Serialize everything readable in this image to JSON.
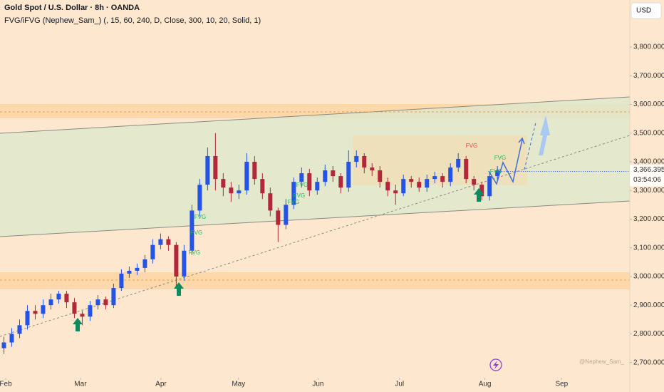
{
  "chart_data": {
    "type": "candlestick",
    "title": "Gold Spot / U.S. Dollar · 8h · OANDA",
    "subtitle": "FVG/iFVG (Nephew_Sam_) (, 15, 60, 240, D, Close, 300, 10, 20, Solid, 1)",
    "currency": "USD",
    "last_price": {
      "value": 3366.395,
      "label": "3,366.395"
    },
    "countdown": "03:54:06",
    "watermark": "@Nephew_Sam_",
    "up_color": "#2453e6",
    "down_color": "#b0283a",
    "open": [
      2750,
      2770,
      2800,
      2830,
      2880,
      2870,
      2900,
      2920,
      2940,
      2910,
      2870,
      2860,
      2900,
      2920,
      2900,
      2960,
      3010,
      3020,
      3030,
      3060,
      3110,
      3130,
      3110,
      3000,
      3090,
      3230,
      3320,
      3420,
      3340,
      3310,
      3290,
      3300,
      3400,
      3340,
      3290,
      3230,
      3180,
      3250,
      3330,
      3360,
      3300,
      3330,
      3370,
      3350,
      3310,
      3400,
      3420,
      3380,
      3370,
      3330,
      3300,
      3290,
      3340,
      3330,
      3310,
      3340,
      3350,
      3330,
      3380,
      3410,
      3340,
      3320,
      3280,
      3350
    ],
    "high": [
      2790,
      2820,
      2850,
      2900,
      2900,
      2920,
      2940,
      2950,
      2950,
      2925,
      2880,
      2915,
      2935,
      2930,
      2975,
      3025,
      3035,
      3045,
      3075,
      3130,
      3150,
      3140,
      3120,
      3110,
      3250,
      3340,
      3450,
      3500,
      3360,
      3330,
      3320,
      3430,
      3420,
      3360,
      3310,
      3240,
      3270,
      3345,
      3380,
      3375,
      3345,
      3390,
      3385,
      3360,
      3440,
      3440,
      3430,
      3395,
      3385,
      3345,
      3320,
      3355,
      3350,
      3345,
      3355,
      3365,
      3360,
      3395,
      3430,
      3420,
      3350,
      3330,
      3365,
      3385
    ],
    "low": [
      2730,
      2755,
      2785,
      2815,
      2850,
      2855,
      2885,
      2905,
      2890,
      2855,
      2830,
      2845,
      2885,
      2885,
      2890,
      2950,
      2995,
      3005,
      3015,
      3045,
      3095,
      3090,
      2960,
      2985,
      3075,
      3210,
      3300,
      3300,
      3280,
      3260,
      3270,
      3285,
      3320,
      3270,
      3210,
      3120,
      3165,
      3235,
      3310,
      3280,
      3285,
      3315,
      3330,
      3290,
      3295,
      3380,
      3360,
      3350,
      3310,
      3280,
      3250,
      3280,
      3310,
      3295,
      3295,
      3325,
      3310,
      3315,
      3365,
      3325,
      3300,
      3265,
      3265,
      3335
    ],
    "close": [
      2770,
      2800,
      2830,
      2880,
      2870,
      2900,
      2920,
      2940,
      2910,
      2870,
      2860,
      2900,
      2920,
      2900,
      2960,
      3010,
      3020,
      3030,
      3060,
      3110,
      3130,
      3110,
      3000,
      3090,
      3230,
      3320,
      3420,
      3340,
      3310,
      3290,
      3300,
      3400,
      3340,
      3290,
      3230,
      3180,
      3250,
      3330,
      3360,
      3300,
      3330,
      3370,
      3350,
      3310,
      3400,
      3420,
      3380,
      3370,
      3330,
      3300,
      3290,
      3340,
      3330,
      3310,
      3340,
      3350,
      3330,
      3380,
      3410,
      3340,
      3320,
      3280,
      3350,
      3370
    ],
    "xlim": [
      -0.5,
      79.9
    ],
    "xticks": [
      {
        "value": 0.23,
        "label": "Feb"
      },
      {
        "value": 9.77,
        "label": "Mar"
      },
      {
        "value": 20.05,
        "label": "Apr"
      },
      {
        "value": 29.95,
        "label": "May"
      },
      {
        "value": 40.1,
        "label": "Jun"
      },
      {
        "value": 50.5,
        "label": "Jul"
      },
      {
        "value": 61.4,
        "label": "Aug"
      },
      {
        "value": 71.2,
        "label": "Sep"
      }
    ],
    "ylim": [
      2647,
      3964
    ],
    "yticks": [
      {
        "value": 2700,
        "label": "2,700.000"
      },
      {
        "value": 2800,
        "label": "2,800.000"
      },
      {
        "value": 2900,
        "label": "2,900.000"
      },
      {
        "value": 3000,
        "label": "3,000.000"
      },
      {
        "value": 3100,
        "label": "3,100.000"
      },
      {
        "value": 3200,
        "label": "3,200.000"
      },
      {
        "value": 3300,
        "label": "3,300.000"
      },
      {
        "value": 3400,
        "label": "3,400.000"
      },
      {
        "value": 3500,
        "label": "3,500.000"
      },
      {
        "value": 3600,
        "label": "3,600.000"
      },
      {
        "value": 3700,
        "label": "3,700.000"
      },
      {
        "value": 3800,
        "label": "3,800.000"
      }
    ],
    "annotations": [
      {
        "text": "FVG",
        "color": "#1fb85a"
      },
      {
        "text": "FVG",
        "color": "#1fb85a"
      },
      {
        "text": "FVG",
        "color": "#1fb85a"
      },
      {
        "text": "FVG",
        "color": "#1fb85a"
      },
      {
        "text": "FVG",
        "color": "#1fb85a"
      },
      {
        "text": "FVG",
        "color": "#1fb85a"
      },
      {
        "text": "FVG",
        "color": "#1fb85a"
      },
      {
        "text": "FVG",
        "color": "#1fb85a"
      },
      {
        "text": "FVG",
        "color": "#d9424f"
      }
    ]
  }
}
